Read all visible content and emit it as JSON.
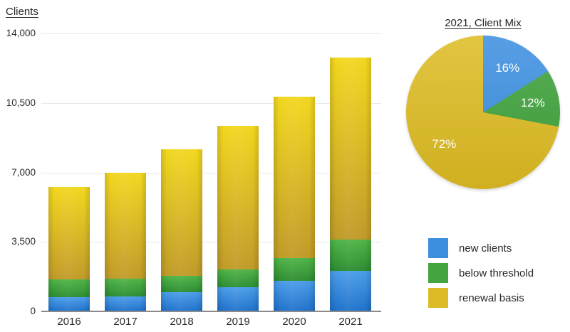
{
  "page": {
    "background": "#ffffff"
  },
  "bar_chart_title": "Clients",
  "pie_chart_title": "2021, Client Mix",
  "chart_data": [
    {
      "id": "clients-stacked-bar",
      "type": "bar",
      "stacked": true,
      "title": "Clients",
      "categories": [
        "2016",
        "2017",
        "2018",
        "2019",
        "2020",
        "2021"
      ],
      "series": [
        {
          "name": "new clients",
          "values": [
            700,
            750,
            950,
            1200,
            1550,
            2050
          ],
          "color_top": "#4b9de8",
          "color_bottom": "#1e70ca"
        },
        {
          "name": "below threshold",
          "values": [
            900,
            900,
            850,
            900,
            1150,
            1550
          ],
          "color_top": "#4fb447",
          "color_bottom": "#2c8c31"
        },
        {
          "name": "renewal basis",
          "values": [
            4650,
            5350,
            6350,
            7250,
            8100,
            9200
          ],
          "color_top": "#f2d71f",
          "color_bottom": "#c09a28"
        }
      ],
      "totals": [
        6250,
        7000,
        8150,
        9350,
        10800,
        12800
      ],
      "ylabel": "Clients",
      "ylim": [
        0,
        14000
      ],
      "yticks": [
        {
          "value": 14000,
          "label": "14,000"
        },
        {
          "value": 10500,
          "label": "10,500"
        },
        {
          "value": 7000,
          "label": "7,000"
        },
        {
          "value": 3500,
          "label": "3,500"
        },
        {
          "value": 0,
          "label": "0"
        }
      ],
      "grid": true
    },
    {
      "id": "client-mix-pie",
      "type": "pie",
      "title": "2021, Client Mix",
      "start": "top",
      "direction": "clockwise",
      "label_color": "#ffffff",
      "slices": [
        {
          "label": "new clients",
          "pct": 16,
          "display": "16%",
          "color": "#3c8fe0"
        },
        {
          "label": "below threshold",
          "pct": 12,
          "display": "12%",
          "color": "#3fa23b"
        },
        {
          "label": "renewal basis",
          "pct": 72,
          "display": "72%",
          "color": "#ddbb22"
        }
      ]
    }
  ],
  "legend": {
    "items": [
      {
        "label": "new clients",
        "color": "#3b8edd"
      },
      {
        "label": "below threshold",
        "color": "#43a440"
      },
      {
        "label": "renewal basis",
        "color": "#ddbb26"
      }
    ]
  },
  "colors": {
    "gridline": "#e8e8e8",
    "axis_line": "#8a8a8a",
    "text": "#2a2a2a"
  }
}
